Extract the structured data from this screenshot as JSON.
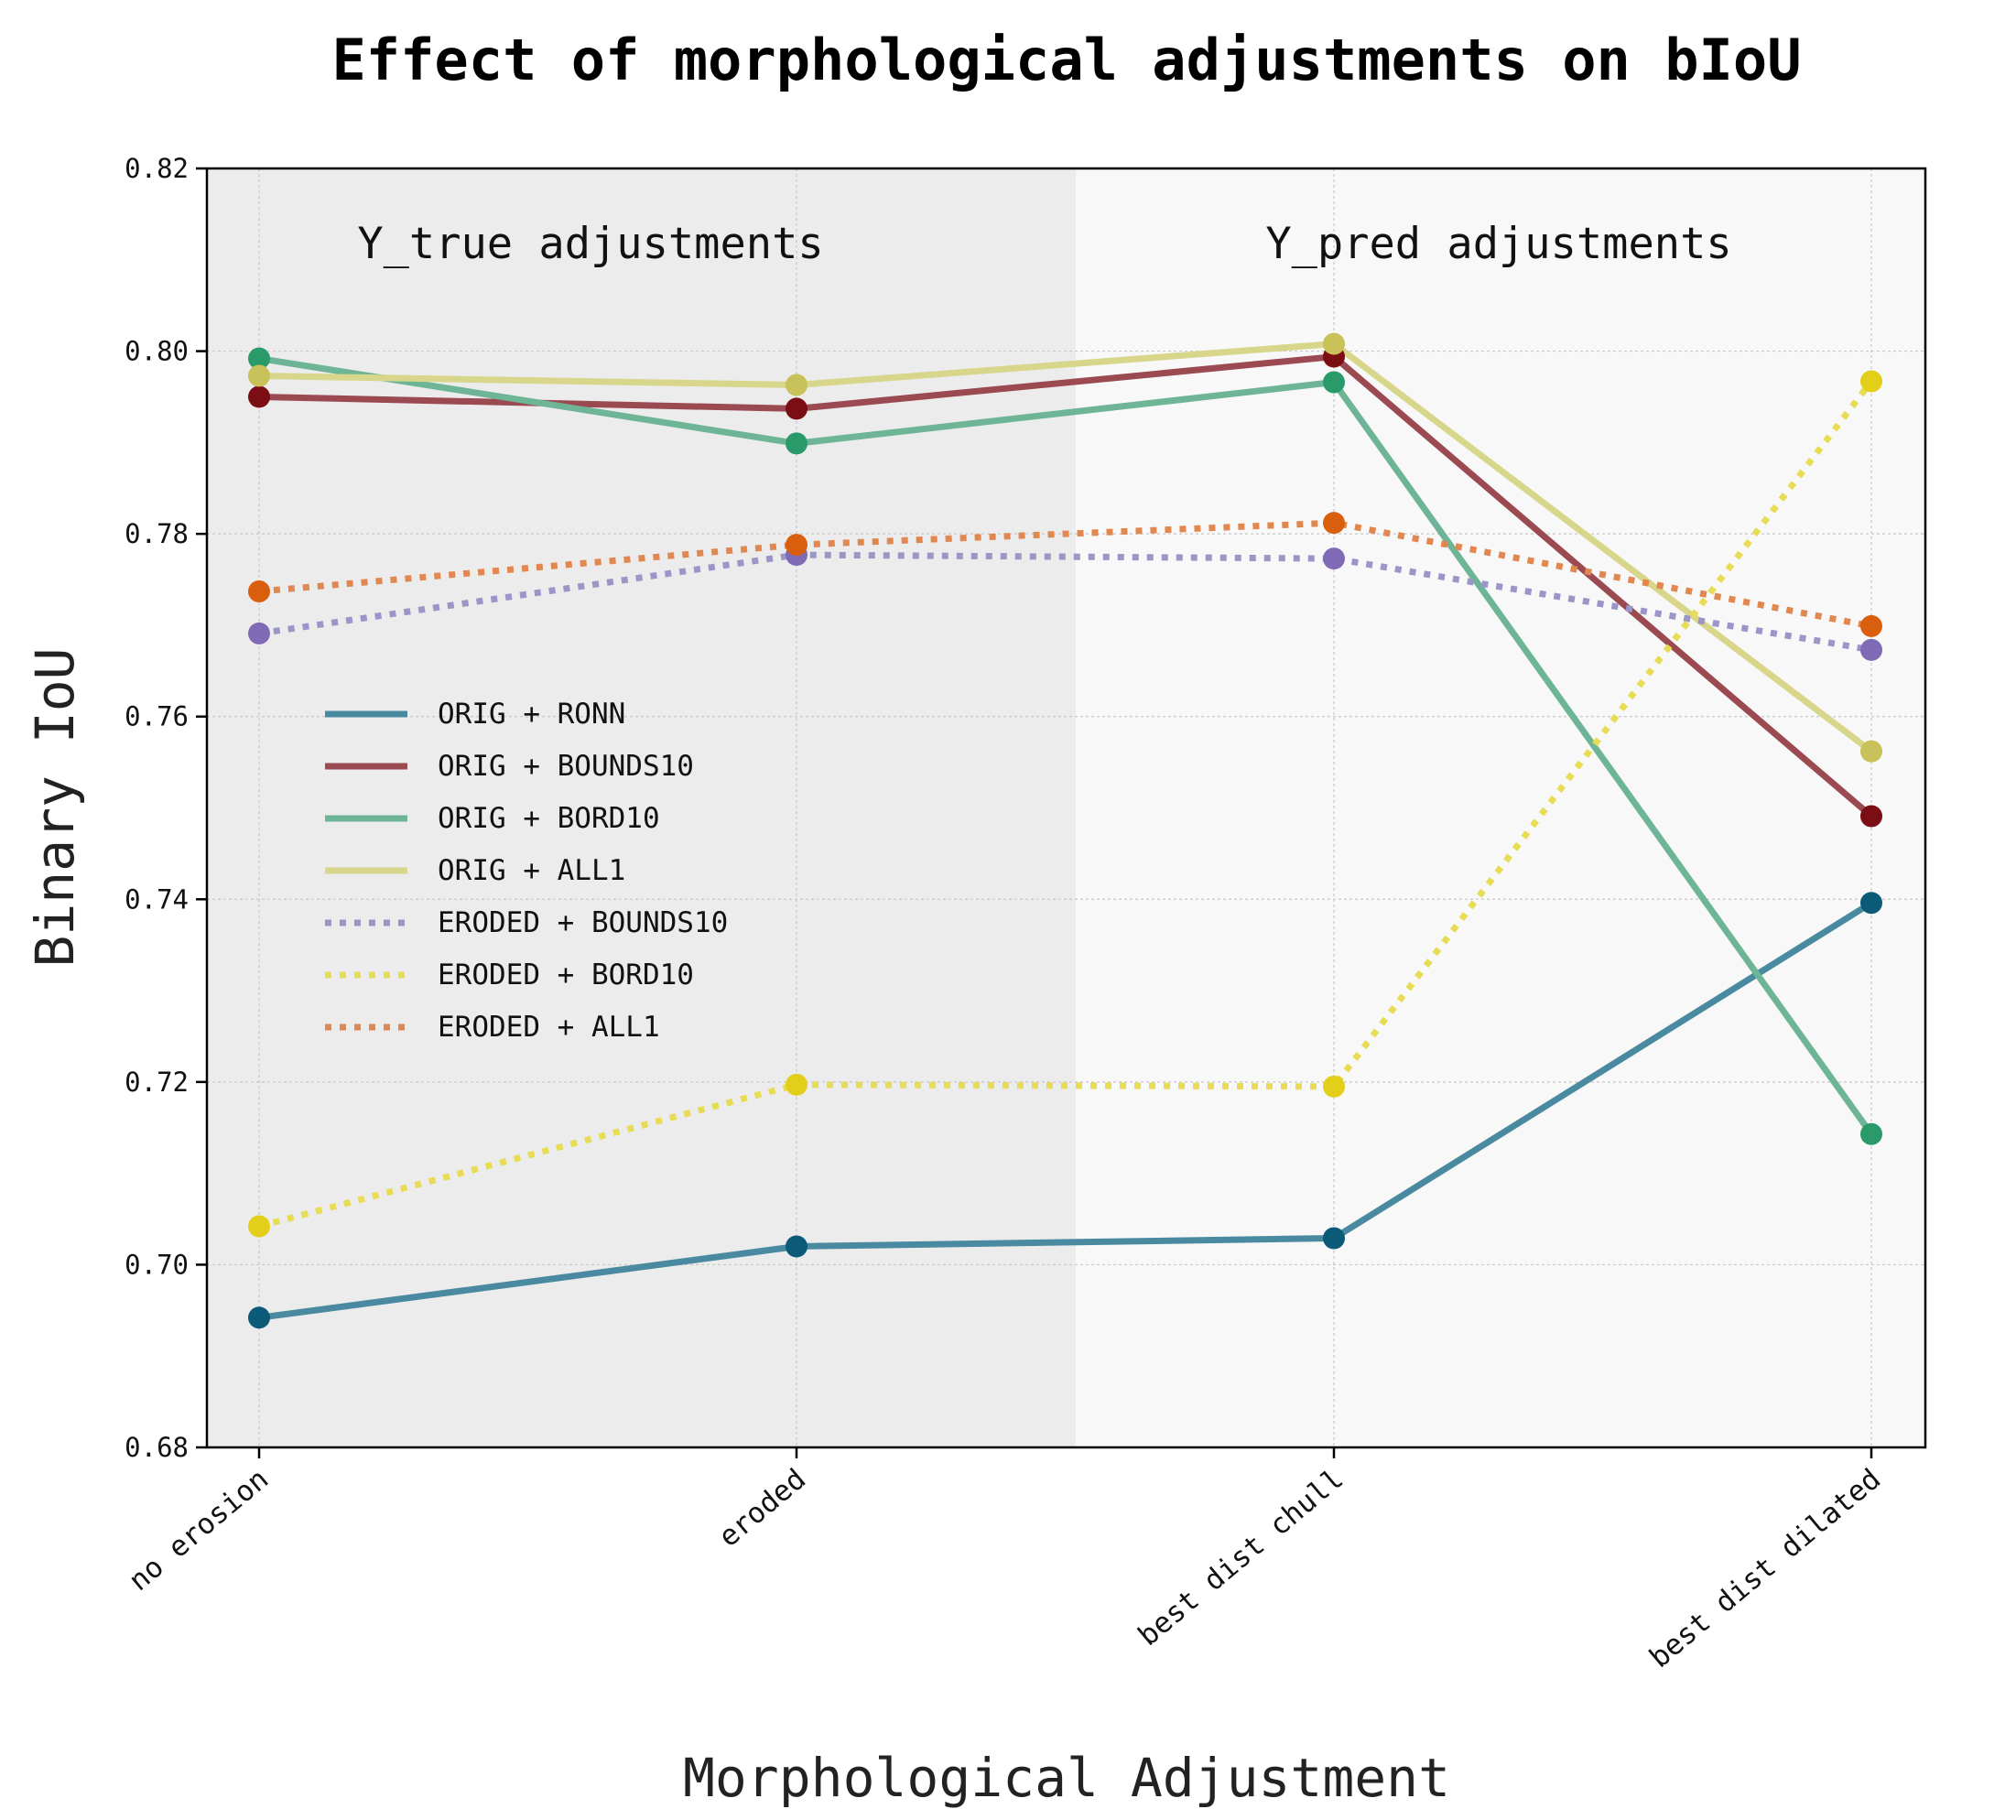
{
  "chart_data": {
    "type": "line",
    "title": "Effect of morphological adjustments on bIoU",
    "xlabel": "Morphological Adjustment",
    "ylabel": "Binary IoU",
    "categories": [
      "no erosion",
      "eroded",
      "best dist chull",
      "best dist dilated"
    ],
    "ylim": [
      0.68,
      0.82
    ],
    "yticks": [
      "0.68",
      "0.70",
      "0.72",
      "0.74",
      "0.76",
      "0.78",
      "0.80",
      "0.82"
    ],
    "grid": true,
    "legend_position": "center-left",
    "regions": [
      {
        "label": "Y_true adjustments",
        "from": 0,
        "to": 1.52,
        "color": "#ececec"
      },
      {
        "label": "Y_pred adjustments",
        "from": 1.52,
        "to": 3.1,
        "color": "#f8f8f8"
      }
    ],
    "series": [
      {
        "name": "ORIG + RONN",
        "values": [
          0.6942,
          0.702,
          0.7029,
          0.7396
        ],
        "color": "#4a8aa0",
        "marker": "#0a5a78",
        "style": "solid"
      },
      {
        "name": "ORIG + BOUNDS10",
        "values": [
          0.795,
          0.7937,
          0.7994,
          0.7491
        ],
        "color": "#9a4a50",
        "marker": "#7a0e14",
        "style": "solid"
      },
      {
        "name": "ORIG + BORD10",
        "values": [
          0.7992,
          0.7899,
          0.7966,
          0.7143
        ],
        "color": "#6db596",
        "marker": "#2a9a6a",
        "style": "solid"
      },
      {
        "name": "ORIG + ALL1",
        "values": [
          0.7973,
          0.7963,
          0.8008,
          0.7562
        ],
        "color": "#d8d68a",
        "marker": "#c9c15a",
        "style": "solid"
      },
      {
        "name": "ERODED + BOUNDS10",
        "values": [
          0.7691,
          0.7777,
          0.7773,
          0.7673
        ],
        "color": "#9a96c8",
        "marker": "#7f6bb5",
        "style": "dotted"
      },
      {
        "name": "ERODED + BORD10",
        "values": [
          0.7042,
          0.7197,
          0.7195,
          0.7967
        ],
        "color": "#e8dc55",
        "marker": "#e3cf1a",
        "style": "dotted"
      },
      {
        "name": "ERODED + ALL1",
        "values": [
          0.7737,
          0.7788,
          0.7812,
          0.7699
        ],
        "color": "#e08850",
        "marker": "#d95f0e",
        "style": "dotted"
      }
    ]
  }
}
